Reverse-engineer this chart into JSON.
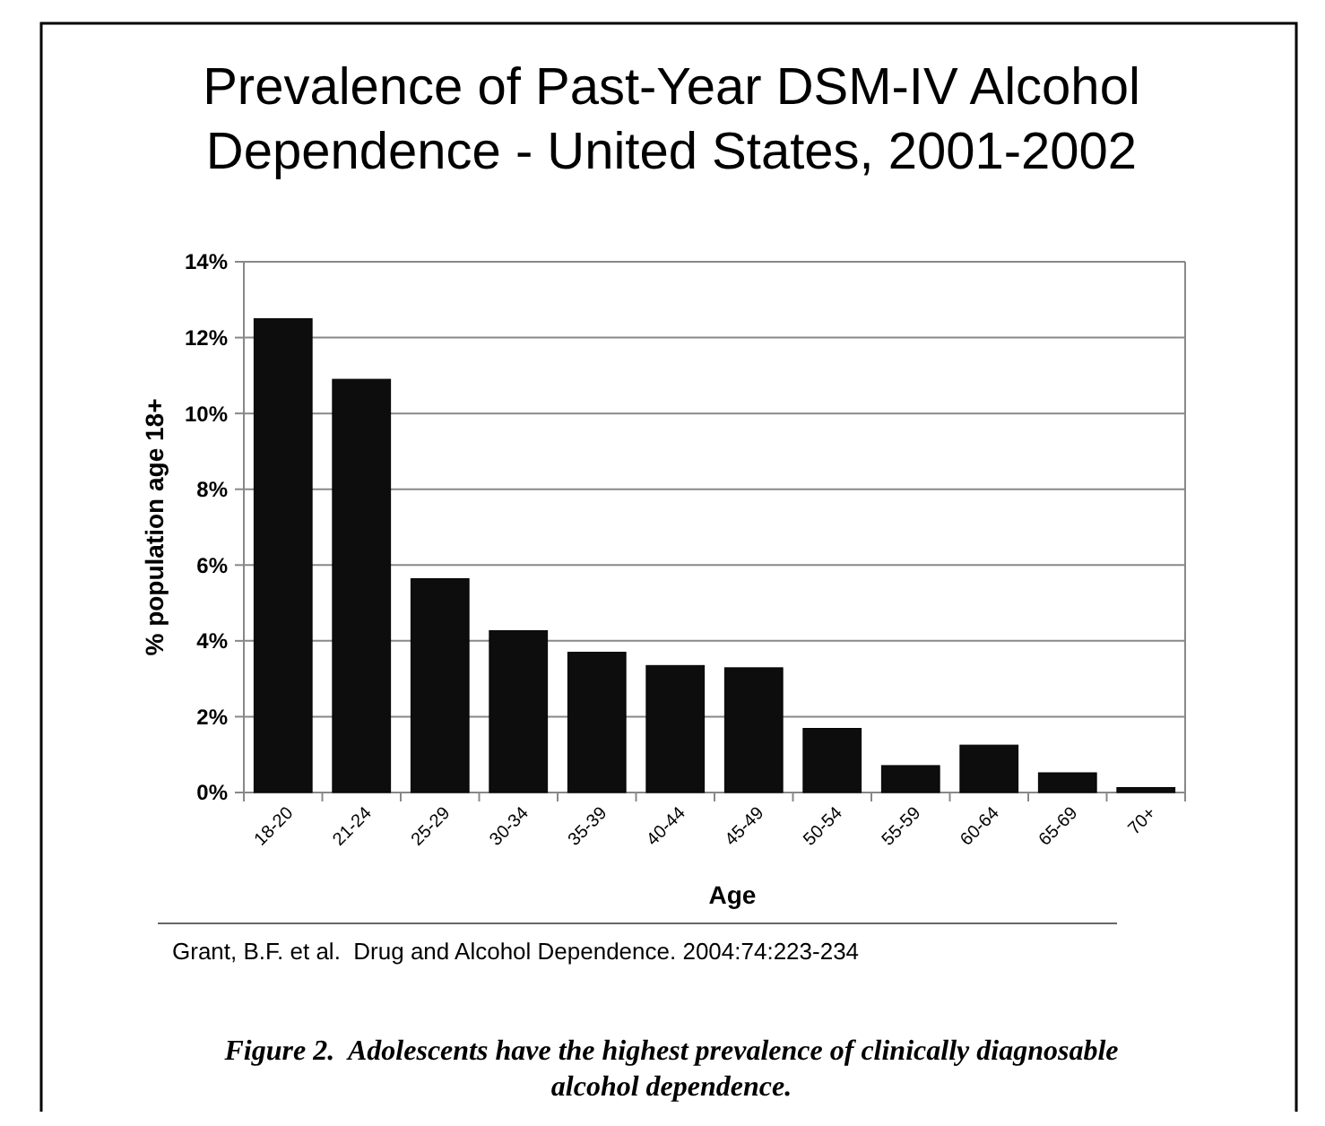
{
  "chart_data": {
    "type": "bar",
    "title": "Prevalence of Past-Year DSM-IV Alcohol Dependence - United States, 2001-2002",
    "xlabel": "Age",
    "ylabel": "% population age 18+",
    "categories": [
      "18-20",
      "21-24",
      "25-29",
      "30-34",
      "35-39",
      "40-44",
      "45-49",
      "50-54",
      "55-59",
      "60-64",
      "65-69",
      "70+"
    ],
    "values": [
      12.5,
      10.9,
      5.64,
      4.27,
      3.7,
      3.35,
      3.29,
      1.69,
      0.71,
      1.25,
      0.52,
      0.13
    ],
    "color": "#0d0d0d",
    "ylim": [
      0,
      14
    ],
    "yticks": [
      {
        "value": 0,
        "label": "0%"
      },
      {
        "value": 2,
        "label": "2%"
      },
      {
        "value": 4,
        "label": "4%"
      },
      {
        "value": 6,
        "label": "6%"
      },
      {
        "value": 8,
        "label": "8%"
      },
      {
        "value": 10,
        "label": "10%"
      },
      {
        "value": 12,
        "label": "12%"
      },
      {
        "value": 14,
        "label": "14%"
      }
    ],
    "grid": "y",
    "annotations": [
      "Grant, B.F. et al.  Drug and Alcohol Dependence. 2004:74:223-234",
      "Figure 2.  Adolescents have the highest prevalence of clinically diagnosable alcohol dependence."
    ]
  }
}
